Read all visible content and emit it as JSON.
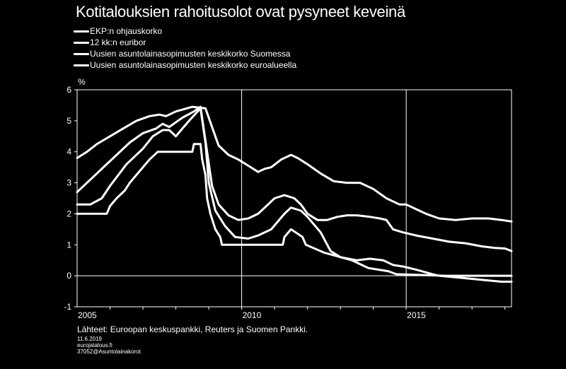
{
  "chart_data": {
    "type": "line",
    "title": "Kotitalouksien rahoitusolot ovat pysyneet keveinä",
    "ylabel": "%",
    "ylim": [
      -1,
      6
    ],
    "yticks": [
      "6",
      "5",
      "4",
      "3",
      "2",
      "1",
      "0",
      "-1"
    ],
    "xlim": [
      2005.0,
      2018.2
    ],
    "xtick_labels": [
      {
        "x": 2005,
        "label": "2005"
      },
      {
        "x": 2010,
        "label": "2010"
      },
      {
        "x": 2015,
        "label": "2015"
      }
    ],
    "grid": "vertical at 2010 and 2015",
    "legend_position": "top-left",
    "series": [
      {
        "name": "EKP:n ohjauskorko",
        "points": [
          [
            2005.0,
            2.0
          ],
          [
            2005.9,
            2.0
          ],
          [
            2006.0,
            2.25
          ],
          [
            2006.2,
            2.5
          ],
          [
            2006.45,
            2.75
          ],
          [
            2006.6,
            3.0
          ],
          [
            2006.8,
            3.25
          ],
          [
            2007.0,
            3.5
          ],
          [
            2007.2,
            3.75
          ],
          [
            2007.45,
            4.0
          ],
          [
            2008.5,
            4.0
          ],
          [
            2008.55,
            4.25
          ],
          [
            2008.75,
            4.25
          ],
          [
            2008.8,
            3.75
          ],
          [
            2008.9,
            3.25
          ],
          [
            2008.95,
            2.5
          ],
          [
            2009.05,
            2.0
          ],
          [
            2009.2,
            1.5
          ],
          [
            2009.35,
            1.25
          ],
          [
            2009.4,
            1.0
          ],
          [
            2011.25,
            1.0
          ],
          [
            2011.3,
            1.25
          ],
          [
            2011.5,
            1.5
          ],
          [
            2011.85,
            1.25
          ],
          [
            2011.95,
            1.0
          ],
          [
            2012.5,
            0.75
          ],
          [
            2013.35,
            0.5
          ],
          [
            2013.85,
            0.25
          ],
          [
            2014.45,
            0.15
          ],
          [
            2014.7,
            0.05
          ],
          [
            2016.2,
            0.0
          ],
          [
            2018.2,
            0.0
          ]
        ]
      },
      {
        "name": "12 kk:n euribor",
        "points": [
          [
            2005.0,
            2.3
          ],
          [
            2005.4,
            2.3
          ],
          [
            2005.75,
            2.5
          ],
          [
            2006.0,
            2.9
          ],
          [
            2006.5,
            3.6
          ],
          [
            2007.0,
            4.1
          ],
          [
            2007.3,
            4.5
          ],
          [
            2007.6,
            4.7
          ],
          [
            2007.8,
            4.7
          ],
          [
            2008.0,
            4.5
          ],
          [
            2008.4,
            5.0
          ],
          [
            2008.75,
            5.4
          ],
          [
            2008.9,
            4.3
          ],
          [
            2009.0,
            3.0
          ],
          [
            2009.2,
            2.1
          ],
          [
            2009.5,
            1.6
          ],
          [
            2009.8,
            1.25
          ],
          [
            2010.2,
            1.2
          ],
          [
            2010.5,
            1.3
          ],
          [
            2010.9,
            1.5
          ],
          [
            2011.3,
            2.0
          ],
          [
            2011.5,
            2.2
          ],
          [
            2011.8,
            2.1
          ],
          [
            2012.0,
            1.9
          ],
          [
            2012.4,
            1.4
          ],
          [
            2012.7,
            0.8
          ],
          [
            2013.0,
            0.6
          ],
          [
            2013.5,
            0.5
          ],
          [
            2013.9,
            0.55
          ],
          [
            2014.3,
            0.5
          ],
          [
            2014.6,
            0.35
          ],
          [
            2014.9,
            0.3
          ],
          [
            2015.3,
            0.2
          ],
          [
            2015.8,
            0.05
          ],
          [
            2016.0,
            0.0
          ],
          [
            2016.5,
            -0.05
          ],
          [
            2017.0,
            -0.1
          ],
          [
            2017.5,
            -0.15
          ],
          [
            2017.9,
            -0.19
          ],
          [
            2018.2,
            -0.19
          ]
        ]
      },
      {
        "name": "Uusien asuntolainasopimusten keskikorko Suomessa",
        "points": [
          [
            2005.0,
            2.7
          ],
          [
            2005.4,
            3.1
          ],
          [
            2005.8,
            3.5
          ],
          [
            2006.2,
            3.9
          ],
          [
            2006.6,
            4.3
          ],
          [
            2007.0,
            4.6
          ],
          [
            2007.4,
            4.75
          ],
          [
            2007.6,
            4.9
          ],
          [
            2007.8,
            4.8
          ],
          [
            2008.2,
            5.1
          ],
          [
            2008.55,
            5.3
          ],
          [
            2008.75,
            5.45
          ],
          [
            2008.95,
            4.0
          ],
          [
            2009.1,
            2.9
          ],
          [
            2009.3,
            2.3
          ],
          [
            2009.6,
            1.95
          ],
          [
            2009.9,
            1.8
          ],
          [
            2010.2,
            1.85
          ],
          [
            2010.5,
            2.0
          ],
          [
            2010.8,
            2.3
          ],
          [
            2011.0,
            2.5
          ],
          [
            2011.3,
            2.6
          ],
          [
            2011.6,
            2.5
          ],
          [
            2011.8,
            2.3
          ],
          [
            2012.0,
            2.0
          ],
          [
            2012.3,
            1.8
          ],
          [
            2012.6,
            1.8
          ],
          [
            2012.9,
            1.9
          ],
          [
            2013.2,
            1.95
          ],
          [
            2013.5,
            1.95
          ],
          [
            2013.9,
            1.9
          ],
          [
            2014.2,
            1.85
          ],
          [
            2014.4,
            1.8
          ],
          [
            2014.6,
            1.5
          ],
          [
            2014.9,
            1.4
          ],
          [
            2015.3,
            1.3
          ],
          [
            2015.8,
            1.2
          ],
          [
            2016.3,
            1.1
          ],
          [
            2016.8,
            1.05
          ],
          [
            2017.3,
            0.95
          ],
          [
            2017.7,
            0.9
          ],
          [
            2018.0,
            0.88
          ],
          [
            2018.2,
            0.8
          ]
        ]
      },
      {
        "name": "Uusien asuntolainasopimusten keskikorko euroalueella",
        "points": [
          [
            2005.0,
            3.8
          ],
          [
            2005.3,
            4.0
          ],
          [
            2005.6,
            4.25
          ],
          [
            2006.0,
            4.5
          ],
          [
            2006.4,
            4.75
          ],
          [
            2006.8,
            5.0
          ],
          [
            2007.2,
            5.15
          ],
          [
            2007.5,
            5.2
          ],
          [
            2007.7,
            5.15
          ],
          [
            2008.0,
            5.3
          ],
          [
            2008.5,
            5.45
          ],
          [
            2008.9,
            5.4
          ],
          [
            2009.1,
            4.8
          ],
          [
            2009.3,
            4.2
          ],
          [
            2009.6,
            3.9
          ],
          [
            2009.9,
            3.75
          ],
          [
            2010.2,
            3.55
          ],
          [
            2010.5,
            3.35
          ],
          [
            2010.7,
            3.45
          ],
          [
            2010.9,
            3.5
          ],
          [
            2011.2,
            3.75
          ],
          [
            2011.5,
            3.9
          ],
          [
            2011.7,
            3.8
          ],
          [
            2012.0,
            3.6
          ],
          [
            2012.4,
            3.3
          ],
          [
            2012.8,
            3.05
          ],
          [
            2013.2,
            3.0
          ],
          [
            2013.6,
            3.0
          ],
          [
            2014.0,
            2.8
          ],
          [
            2014.4,
            2.5
          ],
          [
            2014.8,
            2.3
          ],
          [
            2015.0,
            2.3
          ],
          [
            2015.3,
            2.15
          ],
          [
            2015.6,
            2.0
          ],
          [
            2016.0,
            1.85
          ],
          [
            2016.5,
            1.8
          ],
          [
            2017.0,
            1.85
          ],
          [
            2017.5,
            1.85
          ],
          [
            2017.9,
            1.8
          ],
          [
            2018.2,
            1.75
          ]
        ]
      }
    ],
    "legend_entries": [
      "EKP:n ohjauskorko",
      "12 kk:n euribor",
      "Uusien asuntolainasopimusten keskikorko Suomessa",
      "Uusien asuntolainasopimusten keskikorko euroalueella"
    ]
  },
  "footer": {
    "source": "Lähteet: Euroopan keskuspankki, Reuters ja Suomen Pankki.",
    "date": "11.6.2019",
    "site": "eurojatalous.fi",
    "code": "37052@Asuntolainakorot"
  },
  "colors": {
    "background": "#000000",
    "foreground": "#ffffff"
  }
}
